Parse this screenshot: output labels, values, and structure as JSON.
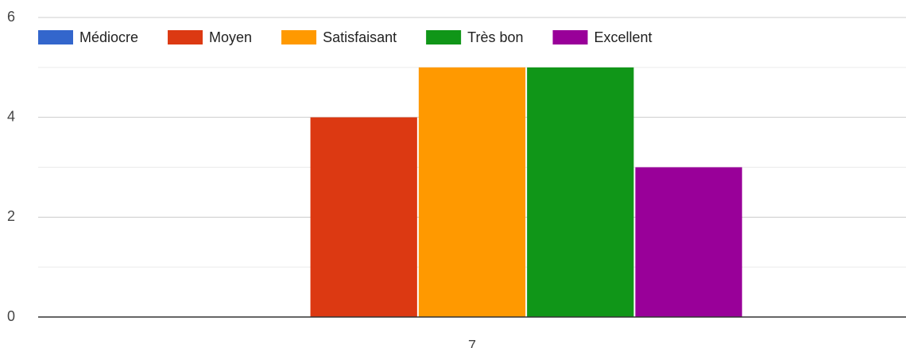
{
  "chart_data": {
    "type": "bar",
    "categories": [
      "7"
    ],
    "series": [
      {
        "name": "Médiocre",
        "color": "#3366cc",
        "values": [
          0
        ]
      },
      {
        "name": "Moyen",
        "color": "#dc3912",
        "values": [
          4
        ]
      },
      {
        "name": "Satisfaisant",
        "color": "#ff9900",
        "values": [
          5
        ]
      },
      {
        "name": "Très bon",
        "color": "#109618",
        "values": [
          5
        ]
      },
      {
        "name": "Excellent",
        "color": "#990099",
        "values": [
          3
        ]
      }
    ],
    "ylim": [
      0,
      6
    ],
    "yticks": [
      0,
      2,
      4,
      6
    ],
    "minor_yticks": [
      1,
      3,
      5
    ],
    "grid": true,
    "legend": "top"
  }
}
